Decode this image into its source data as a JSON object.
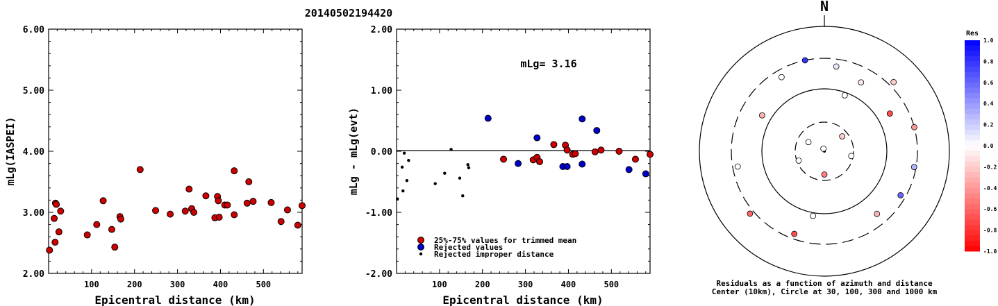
{
  "page": {
    "title": "20140502194420"
  },
  "chart_data": [
    {
      "type": "scatter",
      "title": "",
      "xlabel": "Epicentral distance (km)",
      "ylabel": "mLg(IASPEI)",
      "xlim": [
        0,
        590
      ],
      "ylim": [
        2.0,
        6.0
      ],
      "x_ticks": [
        100,
        200,
        300,
        400,
        500
      ],
      "x_tick_labels": [
        "100",
        "200",
        "300",
        "400",
        "500"
      ],
      "y_ticks": [
        2.0,
        3.0,
        4.0,
        5.0,
        6.0
      ],
      "y_tick_labels": [
        "2.00",
        "3.00",
        "4.00",
        "5.00",
        "6.00"
      ],
      "series": [
        {
          "color": "#cc0000",
          "points": [
            [
              2,
              2.38
            ],
            [
              13,
              2.9
            ],
            [
              15,
              2.51
            ],
            [
              16,
              3.15
            ],
            [
              18,
              3.13
            ],
            [
              24,
              2.68
            ],
            [
              28,
              3.02
            ],
            [
              90,
              2.63
            ],
            [
              112,
              2.8
            ],
            [
              127,
              3.19
            ],
            [
              147,
              2.72
            ],
            [
              154,
              2.43
            ],
            [
              166,
              2.93
            ],
            [
              168,
              2.89
            ],
            [
              213,
              3.7
            ],
            [
              249,
              3.03
            ],
            [
              283,
              2.97
            ],
            [
              318,
              3.02
            ],
            [
              327,
              3.38
            ],
            [
              333,
              3.06
            ],
            [
              338,
              3.0
            ],
            [
              366,
              3.27
            ],
            [
              387,
              2.91
            ],
            [
              393,
              3.26
            ],
            [
              395,
              3.19
            ],
            [
              397,
              2.92
            ],
            [
              410,
              3.12
            ],
            [
              416,
              3.12
            ],
            [
              432,
              2.96
            ],
            [
              432,
              3.68
            ],
            [
              462,
              3.15
            ],
            [
              466,
              3.5
            ],
            [
              476,
              3.18
            ],
            [
              518,
              3.16
            ],
            [
              541,
              2.85
            ],
            [
              556,
              3.04
            ],
            [
              580,
              2.79
            ],
            [
              590,
              3.11
            ]
          ]
        }
      ]
    },
    {
      "type": "scatter",
      "title": "",
      "annotation": "mLg= 3.16",
      "xlabel": "Epicentral distance (km)",
      "ylabel": "mLg - mLg(evt)",
      "xlim": [
        0,
        590
      ],
      "ylim": [
        -2.0,
        2.0
      ],
      "x_ticks": [
        100,
        200,
        300,
        400,
        500
      ],
      "x_tick_labels": [
        "100",
        "200",
        "300",
        "400",
        "500"
      ],
      "y_ticks": [
        -2.0,
        -1.0,
        0.0,
        1.0,
        2.0
      ],
      "y_tick_labels": [
        "-2.00",
        "-1.00",
        "0.00",
        "1.00",
        "2.00"
      ],
      "legend": {
        "position": "bottom-left",
        "entries": [
          {
            "label": "25%-75% values for trimmed mean",
            "color": "#cc0000",
            "marker": "circle"
          },
          {
            "label": "Rejected values",
            "color": "#0000cc",
            "marker": "circle"
          },
          {
            "label": "Rejected improper distance",
            "color": "#000000",
            "marker": "dot"
          }
        ]
      },
      "series": [
        {
          "name": "25%-75% values for trimmed mean",
          "color": "#cc0000",
          "points": [
            [
              249,
              -0.13
            ],
            [
              318,
              -0.14
            ],
            [
              327,
              -0.1
            ],
            [
              333,
              -0.17
            ],
            [
              366,
              0.11
            ],
            [
              393,
              0.1
            ],
            [
              397,
              0.02
            ],
            [
              410,
              -0.05
            ],
            [
              416,
              -0.04
            ],
            [
              462,
              -0.01
            ],
            [
              476,
              0.02
            ],
            [
              518,
              0.0
            ],
            [
              556,
              -0.13
            ],
            [
              590,
              -0.05
            ]
          ]
        },
        {
          "name": "Rejected values",
          "color": "#0000cc",
          "points": [
            [
              213,
              0.54
            ],
            [
              283,
              -0.2
            ],
            [
              327,
              0.22
            ],
            [
              387,
              -0.25
            ],
            [
              397,
              -0.25
            ],
            [
              432,
              0.53
            ],
            [
              432,
              -0.21
            ],
            [
              466,
              0.34
            ],
            [
              541,
              -0.3
            ],
            [
              580,
              -0.37
            ]
          ]
        },
        {
          "name": "Rejected improper distance",
          "color": "#000000",
          "points": [
            [
              2,
              -0.78
            ],
            [
              13,
              -0.26
            ],
            [
              15,
              -0.65
            ],
            [
              18,
              -0.03
            ],
            [
              24,
              -0.48
            ],
            [
              28,
              -0.15
            ],
            [
              90,
              -0.53
            ],
            [
              112,
              -0.36
            ],
            [
              127,
              0.03
            ],
            [
              147,
              -0.44
            ],
            [
              154,
              -0.73
            ],
            [
              166,
              -0.22
            ],
            [
              168,
              -0.27
            ]
          ]
        }
      ]
    },
    {
      "type": "scatter",
      "subtype": "polar",
      "north_label": "N",
      "caption": [
        "Residuals as a function of azimuth and distance",
        "Center (10km), Circle at 30, 100, 300 and 1000 km"
      ],
      "rings_km": [
        30,
        100,
        300,
        1000
      ],
      "colorbar": {
        "title": "Res",
        "range": [
          -1.0,
          1.0
        ],
        "tick_labels": [
          "1.0",
          "0.8",
          "0.6",
          "0.4",
          "0.2",
          "0.0",
          "-0.2",
          "-0.4",
          "-0.6",
          "-0.8",
          "-1.0"
        ],
        "negative_color": "#ff0000",
        "positive_color": "#0000ff"
      },
      "points": [
        {
          "azimuth_deg": 20,
          "distance_km": 90,
          "res": 0.0
        },
        {
          "azimuth_deg": 190,
          "distance_km": 112,
          "res": 0.0
        },
        {
          "azimuth_deg": 300,
          "distance_km": 20,
          "res": 0.0
        },
        {
          "azimuth_deg": 100,
          "distance_km": 28,
          "res": 0.0
        },
        {
          "azimuth_deg": 50,
          "distance_km": 24,
          "res": -0.2
        },
        {
          "azimuth_deg": 180,
          "distance_km": 24,
          "res": -0.5
        },
        {
          "azimuth_deg": 250,
          "distance_km": 28,
          "res": 0.0
        },
        {
          "azimuth_deg": 340,
          "distance_km": 5,
          "res": 0.0
        },
        {
          "azimuth_deg": 348,
          "distance_km": 300,
          "res": 0.8
        },
        {
          "azimuth_deg": 8,
          "distance_km": 230,
          "res": 0.1
        },
        {
          "azimuth_deg": 28,
          "distance_km": 175,
          "res": -0.1
        },
        {
          "azimuth_deg": 60,
          "distance_km": 160,
          "res": -0.7
        },
        {
          "azimuth_deg": 300,
          "distance_km": 140,
          "res": -0.3
        },
        {
          "azimuth_deg": 330,
          "distance_km": 230,
          "res": 0.0
        },
        {
          "azimuth_deg": 200,
          "distance_km": 250,
          "res": -0.7
        },
        {
          "azimuth_deg": 260,
          "distance_km": 250,
          "res": 0.0
        },
        {
          "azimuth_deg": 100,
          "distance_km": 280,
          "res": 0.3
        },
        {
          "azimuth_deg": 120,
          "distance_km": 250,
          "res": 0.6
        },
        {
          "azimuth_deg": 140,
          "distance_km": 200,
          "res": -0.3
        },
        {
          "azimuth_deg": 230,
          "distance_km": 350,
          "res": -0.6
        },
        {
          "azimuth_deg": 75,
          "distance_km": 300,
          "res": -0.4
        },
        {
          "azimuth_deg": 45,
          "distance_km": 360,
          "res": -0.2
        }
      ]
    }
  ]
}
